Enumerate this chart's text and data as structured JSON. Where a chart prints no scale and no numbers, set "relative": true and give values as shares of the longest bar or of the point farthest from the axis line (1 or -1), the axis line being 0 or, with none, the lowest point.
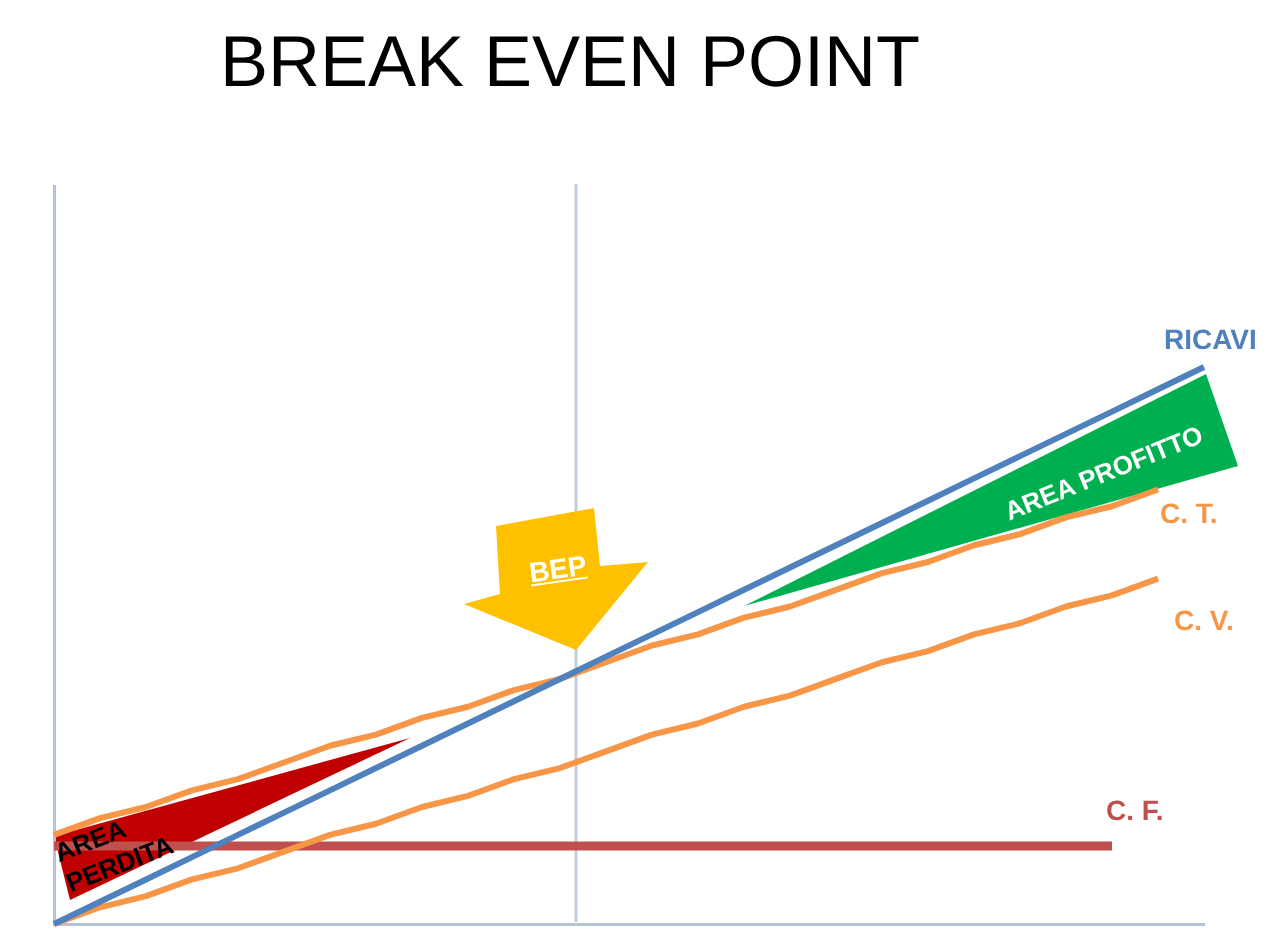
{
  "chart_data": {
    "type": "line",
    "title": "BREAK EVEN POINT",
    "relative": true,
    "marker": "none",
    "categories": [
      null,
      null,
      null,
      null,
      null,
      null,
      null,
      null,
      null,
      null,
      null,
      null,
      null,
      null,
      null,
      null,
      null,
      null,
      null,
      null,
      null,
      null,
      null,
      null,
      null,
      null
    ],
    "series": [
      {
        "name": "RICAVI",
        "color": "#4f81bd",
        "values": [
          0,
          0.04,
          0.08,
          0.12,
          0.16,
          0.2,
          0.24,
          0.28,
          0.32,
          0.36,
          0.4,
          0.44,
          0.48,
          0.52,
          0.56,
          0.6,
          0.64,
          0.68,
          0.72,
          0.76,
          0.8,
          0.84,
          0.88,
          0.92,
          0.96,
          1
        ]
      },
      {
        "name": "C. T.",
        "color": "#f79646",
        "values": [
          0.16,
          0.19,
          0.21,
          0.24,
          0.26,
          0.29,
          0.32,
          0.34,
          0.37,
          0.39,
          0.42,
          0.44,
          0.47,
          0.5,
          0.52,
          0.55,
          0.57,
          0.6,
          0.63,
          0.65,
          0.68,
          0.7,
          0.73,
          0.75,
          0.78,
          null
        ]
      },
      {
        "name": "C. V.",
        "color": "#f79646",
        "values": [
          0,
          0.03,
          0.05,
          0.08,
          0.1,
          0.13,
          0.16,
          0.18,
          0.21,
          0.23,
          0.26,
          0.28,
          0.31,
          0.34,
          0.36,
          0.39,
          0.41,
          0.44,
          0.47,
          0.49,
          0.52,
          0.54,
          0.57,
          0.59,
          0.62,
          null
        ]
      },
      {
        "name": "C. F.",
        "color": "#c0504d",
        "values": [
          0.14,
          0.14,
          0.14,
          0.14,
          0.14,
          0.14,
          0.14,
          0.14,
          0.14,
          0.14,
          0.14,
          0.14,
          0.14,
          0.14,
          0.14,
          0.14,
          0.14,
          0.14,
          0.14,
          0.14,
          0.14,
          0.14,
          0.14,
          0.14,
          null,
          null
        ]
      }
    ],
    "annotations": [
      "AREA PROFITTO",
      "BEP",
      "AREA PERDITA"
    ]
  }
}
